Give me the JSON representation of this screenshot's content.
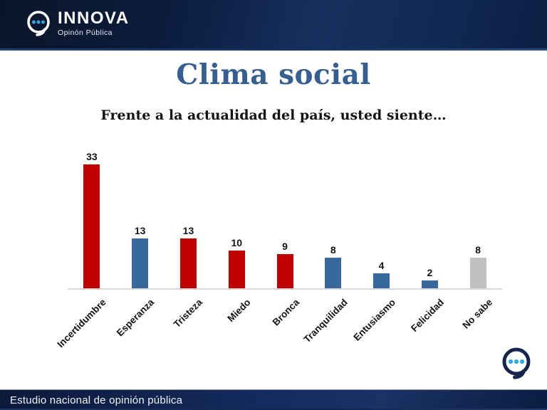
{
  "header": {
    "logo": {
      "name": "INNOVA",
      "tagline": "Opinón Pública"
    }
  },
  "title": "Clima social",
  "subtitle": "Frente a la actualidad del país, usted siente…",
  "footer": {
    "text": "Estudio nacional de opinión pública"
  },
  "colors": {
    "red": "#c00000",
    "blue": "#36689e",
    "gray": "#c0c0c0",
    "title_blue": "#365f91",
    "navy_dark": "#0a1529",
    "navy_light": "#16305f",
    "dot_cyan": "#2ea9df",
    "baseline": "#d9d9d9",
    "label_text": "#141414"
  },
  "chart_data": {
    "type": "bar",
    "title": "Clima social",
    "subtitle": "Frente a la actualidad del país, usted siente…",
    "categories": [
      "Incertidumbre",
      "Esperanza",
      "Tristeza",
      "Miedo",
      "Bronca",
      "Tranquilidad",
      "Entusiasmo",
      "Felicidad",
      "No sabe"
    ],
    "values": [
      33,
      13,
      13,
      10,
      9,
      8,
      4,
      2,
      8
    ],
    "bar_colors": [
      "#c00000",
      "#36689e",
      "#c00000",
      "#c00000",
      "#c00000",
      "#36689e",
      "#36689e",
      "#36689e",
      "#c0c0c0"
    ],
    "value_labels_shown": true,
    "xlabel": "",
    "ylabel": "",
    "ylim": [
      0,
      36
    ],
    "grid": false,
    "legend": "none",
    "x_tick_rotation": 45
  }
}
